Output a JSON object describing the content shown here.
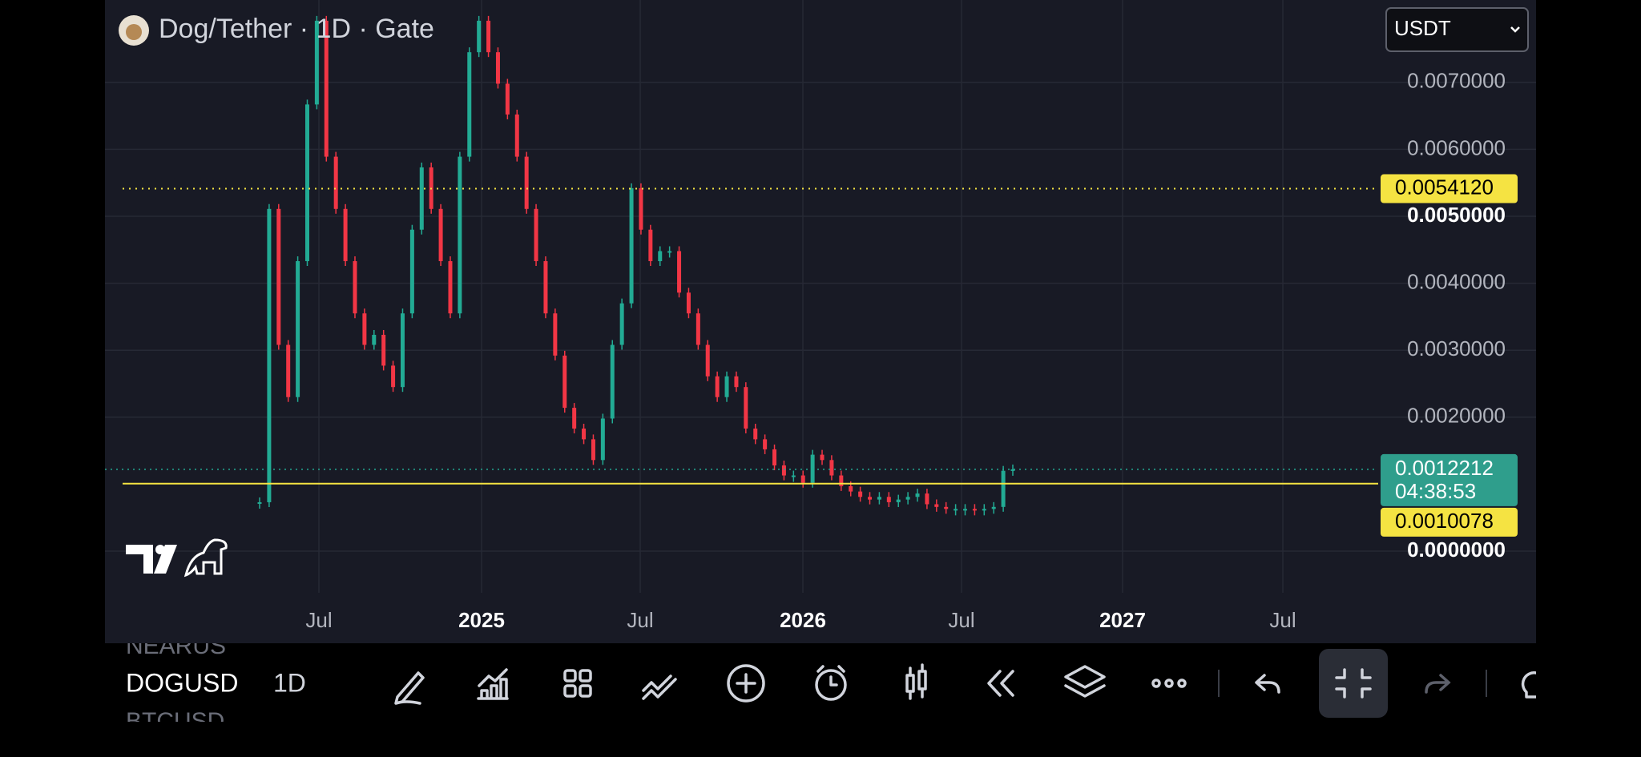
{
  "header": {
    "title": "Dog/Tether · 1D · Gate",
    "currency": "USDT"
  },
  "chart": {
    "price_ticks": [
      {
        "value": 0.007,
        "label": "0.0070000"
      },
      {
        "value": 0.006,
        "label": "0.0060000"
      },
      {
        "value": 0.005,
        "label": "0.0050000",
        "bold": true
      },
      {
        "value": 0.004,
        "label": "0.0040000"
      },
      {
        "value": 0.003,
        "label": "0.0030000"
      },
      {
        "value": 0.002,
        "label": "0.0020000"
      },
      {
        "value": 0,
        "label": "0.0000000",
        "bold": true
      }
    ],
    "time_labels": [
      "Jul",
      "2025",
      "Jul",
      "2026",
      "Jul",
      "2027",
      "Jul"
    ],
    "candles": [
      0.00073,
      0.00511,
      0.00308,
      0.0023,
      0.00433,
      0.00667,
      0.00792,
      0.00589,
      0.00511,
      0.00433,
      0.00355,
      0.00308,
      0.00323,
      0.00277,
      0.00245,
      0.00355,
      0.0048,
      0.00573,
      0.00511,
      0.00433,
      0.00355,
      0.00589,
      0.00745,
      0.00792,
      0.00745,
      0.00698,
      0.00652,
      0.00589,
      0.00511,
      0.00433,
      0.00355,
      0.00292,
      0.00214,
      0.00183,
      0.00167,
      0.00136,
      0.00198,
      0.00308,
      0.0037,
      0.00542,
      0.0048,
      0.00433,
      0.00448,
      0.00448,
      0.00386,
      0.00355,
      0.00308,
      0.00261,
      0.0023,
      0.00261,
      0.00245,
      0.00183,
      0.00167,
      0.00152,
      0.00128,
      0.00113,
      0.00113,
      0.00102,
      0.00144,
      0.00136,
      0.00113,
      0.00097,
      0.00089,
      0.00081,
      0.00077,
      0.00081,
      0.00073,
      0.00077,
      0.00081,
      0.00086,
      0.0007,
      0.00066,
      0.00063,
      0.00063,
      0.00063,
      0.00061,
      0.00063,
      0.00066,
      0.0012,
      0.0012212
    ],
    "alert_line": {
      "value": 0.005412,
      "label": "0.0054120"
    },
    "support_line": {
      "value": 0.0010078,
      "label": "0.0010078"
    },
    "last_price": {
      "value": 0.0012212,
      "label": "0.0012212",
      "countdown": "04:38:53"
    }
  },
  "toolbar": {
    "symbol_above": "NEARUS",
    "symbol": "DOGUSD",
    "symbol_below": "BTCUSD",
    "interval": "1D"
  }
}
